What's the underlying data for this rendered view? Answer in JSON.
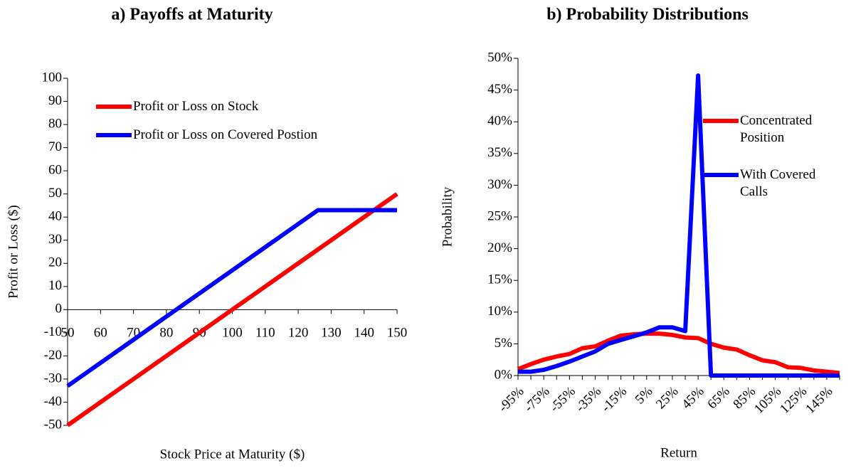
{
  "chart_data": [
    {
      "type": "line",
      "title": "a) Payoffs at Maturity",
      "x_label": "Stock Price at Maturity ($)",
      "y_label": "Profit or Loss ($)",
      "x": [
        50,
        60,
        70,
        80,
        90,
        100,
        110,
        120,
        126,
        130,
        140,
        150
      ],
      "series": [
        {
          "name": "Profit or Loss on Stock",
          "color": "#ff0000",
          "values": [
            -50,
            -40,
            -30,
            -20,
            -10,
            0,
            10,
            20,
            26,
            30,
            40,
            50
          ]
        },
        {
          "name": "Profit or Loss on Covered Postion",
          "color": "#0000ff",
          "values": [
            -33,
            -23,
            -13,
            -3,
            7,
            17,
            27,
            37,
            43,
            43,
            43,
            43
          ]
        }
      ],
      "xlim": [
        50,
        150
      ],
      "xticks": [
        50,
        60,
        70,
        80,
        90,
        100,
        110,
        120,
        130,
        140,
        150
      ],
      "ylim": [
        -50,
        100
      ],
      "yticks": [
        -50,
        -40,
        -30,
        -20,
        -10,
        0,
        10,
        20,
        30,
        40,
        50,
        60,
        70,
        80,
        90,
        100
      ],
      "legend": "upper left"
    },
    {
      "type": "line",
      "title": "b) Probability Distributions",
      "x_label": "Return",
      "y_label": "Probability",
      "categories": [
        "-95%",
        null,
        "-75%",
        null,
        "-55%",
        null,
        "-35%",
        null,
        "-15%",
        null,
        "5%",
        null,
        "25%",
        null,
        "45%",
        null,
        "65%",
        null,
        "85%",
        null,
        "105%",
        null,
        "125%",
        null,
        "145%",
        null
      ],
      "series": [
        {
          "name": "Concentrated Position",
          "color": "#ff0000",
          "values": [
            1.0,
            1.8,
            2.5,
            3.0,
            3.4,
            4.3,
            4.6,
            5.5,
            6.3,
            6.5,
            6.6,
            6.6,
            6.4,
            6.0,
            5.9,
            5.0,
            4.4,
            4.1,
            3.2,
            2.4,
            2.1,
            1.3,
            1.2,
            0.8,
            0.6,
            0.4
          ]
        },
        {
          "name": "With Covered Calls",
          "color": "#0000ff",
          "values": [
            0.6,
            0.6,
            0.9,
            1.5,
            2.2,
            3.0,
            3.8,
            5.0,
            5.6,
            6.2,
            6.8,
            7.6,
            7.6,
            7.0,
            47.3,
            0,
            0,
            0,
            0,
            0,
            0,
            0,
            0,
            0,
            0,
            0
          ]
        }
      ],
      "ylim": [
        0,
        50
      ],
      "yticks": [
        {
          "value": 0,
          "label": "0%"
        },
        {
          "value": 5,
          "label": "5%"
        },
        {
          "value": 10,
          "label": "10%"
        },
        {
          "value": 15,
          "label": "15%"
        },
        {
          "value": 20,
          "label": "20%"
        },
        {
          "value": 25,
          "label": "25%"
        },
        {
          "value": 30,
          "label": "30%"
        },
        {
          "value": 35,
          "label": "35%"
        },
        {
          "value": 40,
          "label": "40%"
        },
        {
          "value": 45,
          "label": "45%"
        },
        {
          "value": 50,
          "label": "50%"
        }
      ],
      "legend": "right"
    }
  ]
}
